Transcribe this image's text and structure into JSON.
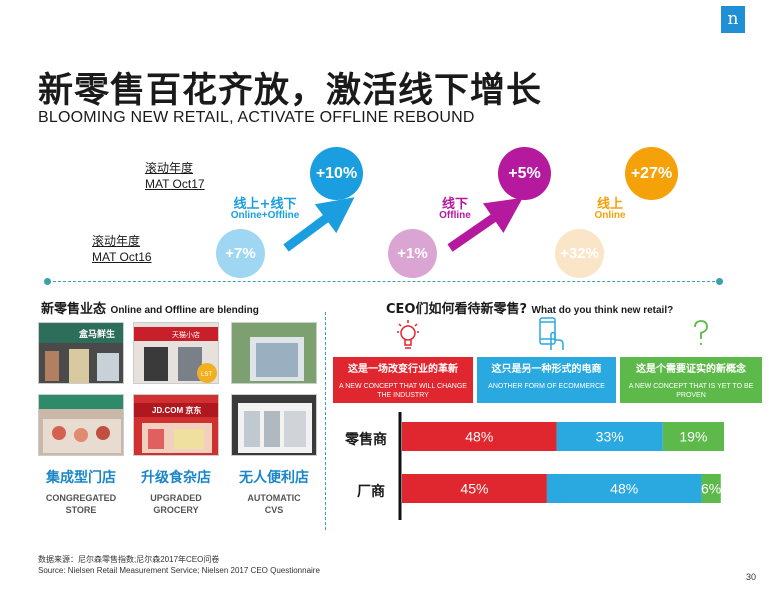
{
  "logo": "n",
  "title_cn": "新零售百花齐放，激活线下增长",
  "title_en": "BLOOMING NEW RETAIL, ACTIVATE OFFLINE REBOUND",
  "mat_oct17": {
    "line1": "滚动年度",
    "line2": "MAT Oct17"
  },
  "mat_oct16": {
    "line1": "滚动年度",
    "line2": "MAT Oct16"
  },
  "growth_groups": [
    {
      "cn": "线上+线下",
      "en": "Online+Offline",
      "prev": "+7%",
      "curr": "+10%",
      "color": "#1a9ee0",
      "prev_color": "#9fd6f2"
    },
    {
      "cn": "线下",
      "en": "Offline",
      "prev": "+1%",
      "curr": "+5%",
      "color": "#b5199e",
      "prev_color": "#dba5d3"
    },
    {
      "cn": "线上",
      "en": "Online",
      "prev": "+32%",
      "curr": "+27%",
      "color": "#f5a10a",
      "prev_color": "#fbe5c8"
    }
  ],
  "left_section": {
    "cn": "新零售业态",
    "en": "Online and Offline are blending"
  },
  "store_formats": [
    {
      "cn": "集成型门店",
      "en1": "CONGREGATED",
      "en2": "STORE"
    },
    {
      "cn": "升级食杂店",
      "en1": "UPGRADED",
      "en2": "GROCERY"
    },
    {
      "cn": "无人便利店",
      "en1": "AUTOMATIC",
      "en2": "CVS"
    }
  ],
  "photo_signs": [
    "盒马鲜生",
    "天猫小店",
    "JD.COM 京东",
    "LST"
  ],
  "right_section": {
    "cn": "CEO们如何看待新零售?",
    "en": "What do you think new retail?"
  },
  "concepts": [
    {
      "cn": "这是一场改变行业的革新",
      "en": "A NEW CONCEPT THAT WILL CHANGE THE INDUSTRY",
      "color": "#e0262e",
      "icon": "lightbulb-icon"
    },
    {
      "cn": "这只是另一种形式的电商",
      "en": "ANOTHER FORM OF ECOMMERCE",
      "color": "#2aa8e0",
      "icon": "phone-touch-icon"
    },
    {
      "cn": "这是个需要证实的新概念",
      "en": "A NEW CONCEPT THAT IS YET TO BE PROVEN",
      "color": "#5db94a",
      "icon": "question-icon"
    }
  ],
  "chart_data": {
    "type": "bar",
    "orientation": "horizontal",
    "stacked": true,
    "categories": [
      "零售商",
      "厂商"
    ],
    "series": [
      {
        "name": "这是一场改变行业的革新",
        "color": "#e0262e",
        "values": [
          48,
          45
        ]
      },
      {
        "name": "这只是另一种形式的电商",
        "color": "#2aa8e0",
        "values": [
          33,
          48
        ]
      },
      {
        "name": "这是个需要证实的新概念",
        "color": "#5db94a",
        "values": [
          19,
          6
        ]
      }
    ],
    "labels": [
      [
        "48%",
        "33%",
        "19%"
      ],
      [
        "45%",
        "48%",
        "6%"
      ]
    ],
    "xlim": [
      0,
      100
    ],
    "unit": "%"
  },
  "source_line1": "数据来源：尼尔森零售指数;尼尔森2017年CEO问卷",
  "source_line2": "Source: Nielsen Retail Measurement Service; Nielsen 2017 CEO Questionnaire",
  "page_number": "30"
}
